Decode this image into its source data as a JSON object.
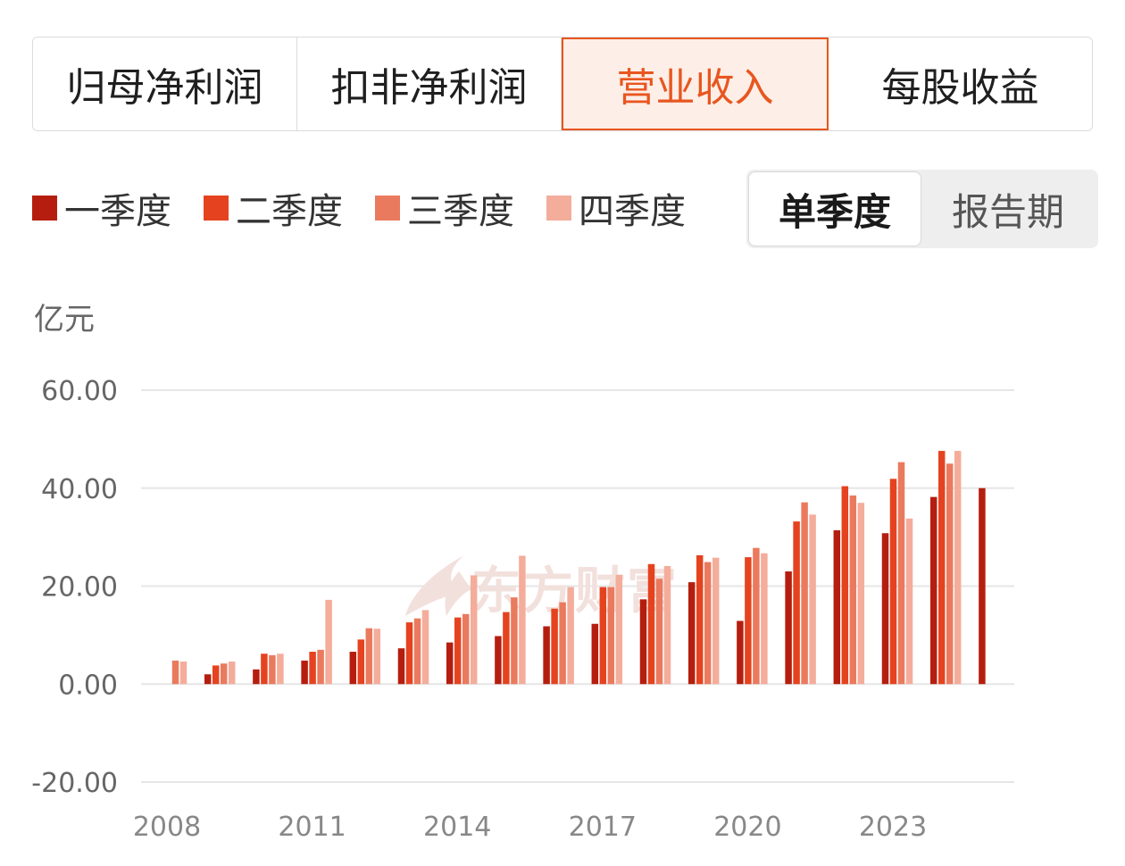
{
  "tabs": [
    {
      "label": "归母净利润",
      "active": false
    },
    {
      "label": "扣非净利润",
      "active": false
    },
    {
      "label": "营业收入",
      "active": true
    },
    {
      "label": "每股收益",
      "active": false
    }
  ],
  "legend": [
    {
      "label": "一季度",
      "color": "#b51e0f"
    },
    {
      "label": "二季度",
      "color": "#e5431f"
    },
    {
      "label": "三季度",
      "color": "#ea7a5e"
    },
    {
      "label": "四季度",
      "color": "#f4ad9b"
    }
  ],
  "period_toggle": {
    "options": [
      "单季度",
      "报告期"
    ],
    "active": "单季度"
  },
  "unit": "亿元",
  "watermark": "东方财富",
  "chart_data": {
    "type": "bar",
    "title": "",
    "xlabel": "",
    "ylabel": "亿元",
    "ylim": [
      -20,
      60
    ],
    "yticks": [
      "60.00",
      "40.00",
      "20.00",
      "0.00",
      "-20.00"
    ],
    "ytick_values": [
      60,
      40,
      20,
      0,
      -20
    ],
    "xticks": [
      "2008",
      "2011",
      "2014",
      "2017",
      "2020",
      "2023"
    ],
    "categories": [
      "2008",
      "2009",
      "2010",
      "2011",
      "2012",
      "2013",
      "2014",
      "2015",
      "2016",
      "2017",
      "2018",
      "2019",
      "2020",
      "2021",
      "2022",
      "2023",
      "2024",
      "2025"
    ],
    "grid": true,
    "series": [
      {
        "name": "一季度",
        "values": [
          null,
          2.0,
          3.0,
          4.8,
          6.6,
          7.3,
          8.5,
          9.8,
          11.8,
          12.3,
          17.3,
          20.8,
          12.9,
          23.0,
          31.4,
          30.8,
          38.2,
          40.0
        ]
      },
      {
        "name": "二季度",
        "values": [
          null,
          3.8,
          6.2,
          6.6,
          9.1,
          12.6,
          13.6,
          14.7,
          15.4,
          19.8,
          24.5,
          26.3,
          25.9,
          33.2,
          40.4,
          41.9,
          47.6,
          null
        ]
      },
      {
        "name": "三季度",
        "values": [
          4.8,
          4.2,
          5.9,
          7.0,
          11.4,
          13.4,
          14.3,
          17.7,
          16.7,
          19.8,
          21.5,
          24.9,
          27.8,
          37.1,
          38.5,
          45.3,
          45.0,
          null
        ]
      },
      {
        "name": "四季度",
        "values": [
          4.6,
          4.6,
          6.2,
          17.2,
          11.3,
          15.1,
          22.2,
          26.2,
          19.8,
          22.3,
          24.1,
          25.8,
          26.7,
          34.6,
          37.0,
          33.8,
          47.6,
          null
        ]
      }
    ]
  }
}
